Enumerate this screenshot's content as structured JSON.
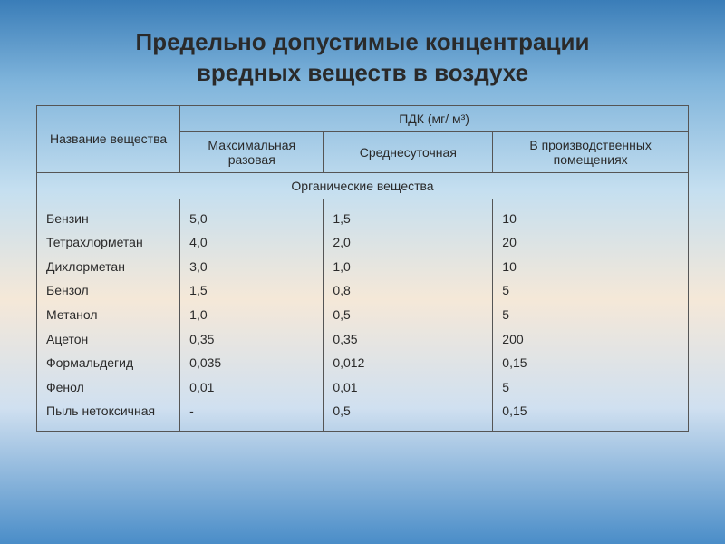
{
  "title_line1": "Предельно допустимые концентрации",
  "title_line2": "вредных веществ в воздухе",
  "headers": {
    "substance": "Название вещества",
    "pdk": "ПДК (мг/ м³)",
    "max_single": "Максимальная разовая",
    "daily_avg": "Среднесуточная",
    "industrial": "В производственных помещениях"
  },
  "section": "Органические вещества",
  "substances": [
    "Бензин",
    "Тетрахлорметан",
    "Дихлорметан",
    "Бензол",
    "Метанол",
    "Ацетон",
    "Формальдегид",
    "Фенол",
    "Пыль нетоксичная"
  ],
  "max_values": [
    "5,0",
    "4,0",
    "3,0",
    "1,5",
    "1,0",
    "0,35",
    "0,035",
    "0,01",
    "-"
  ],
  "daily_values": [
    "1,5",
    "2,0",
    "1,0",
    "0,8",
    "0,5",
    "0,35",
    "0,012",
    "0,01",
    "0,5"
  ],
  "industrial_values": [
    "10",
    "20",
    "10",
    "5",
    "5",
    "200",
    "0,15",
    "5",
    "0,15"
  ],
  "styling": {
    "gradient_colors": [
      "#3a7db8",
      "#7fb4db",
      "#c5dff0",
      "#f5e8d8",
      "#d0e0f0",
      "#4a8dc8"
    ],
    "border_color": "#555",
    "text_color": "#2a2a2a",
    "title_fontsize": 26,
    "cell_fontsize": 14,
    "line_height": 1.9
  }
}
